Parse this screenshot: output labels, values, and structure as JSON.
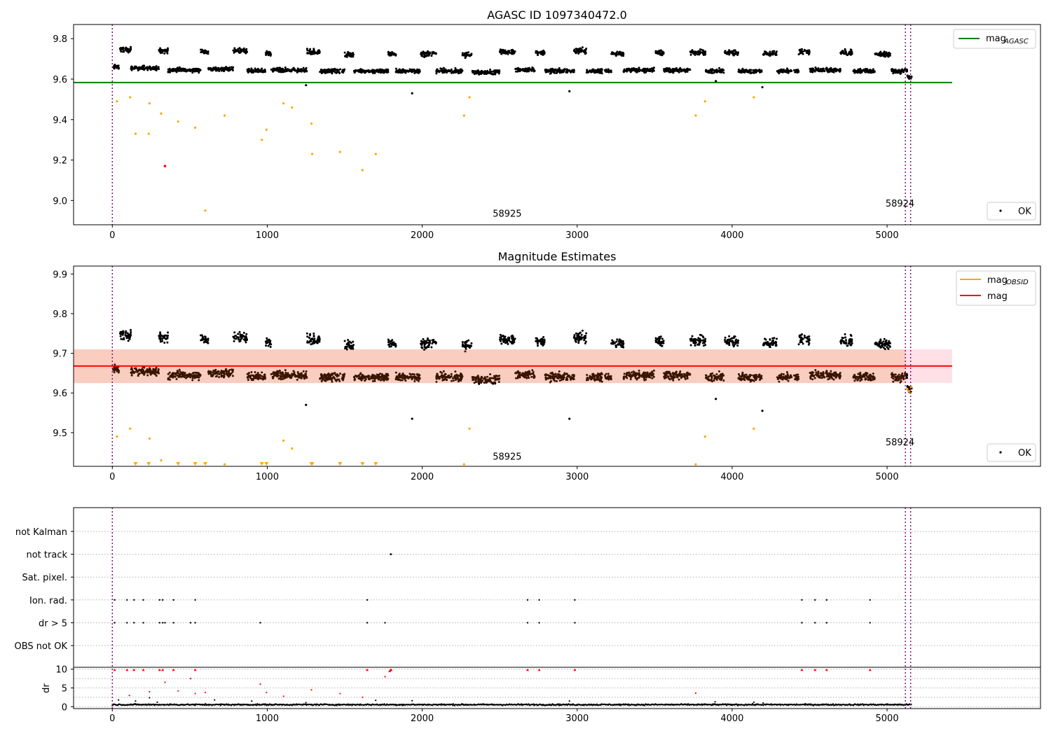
{
  "colors": {
    "ok": "#000000",
    "orange": "#ffa500",
    "red": "#ff0000",
    "green": "#008000",
    "purple": "#800080",
    "band": "#f9c8b8",
    "grid": "#b0b0b0"
  },
  "chart_data": [
    {
      "type": "scatter",
      "title": "AGASC ID 1097340472.0",
      "xlim": [
        -250,
        5990
      ],
      "ylim": [
        8.88,
        9.87
      ],
      "x_ticks": [
        "0",
        "1000",
        "2000",
        "3000",
        "4000",
        "5000"
      ],
      "y_ticks": [
        "9.0",
        "9.2",
        "9.4",
        "9.6",
        "9.8"
      ],
      "agasc_mag": 9.583,
      "agasc_line_x": [
        -250,
        5420
      ],
      "vlines": [
        0,
        5118,
        5152
      ],
      "annotations": [
        {
          "text": "58925",
          "x": 2455,
          "y": 8.92
        },
        {
          "text": "58924",
          "x": 4990,
          "y": 8.97
        }
      ],
      "legend_upper": [
        {
          "label": "mag",
          "sub": "AGASC",
          "color": "#008000"
        }
      ],
      "legend_lower": [
        {
          "label": "OK",
          "marker": "dot"
        }
      ],
      "outliers_orange": [
        [
          30,
          9.49
        ],
        [
          115,
          9.51
        ],
        [
          150,
          9.33
        ],
        [
          235,
          9.33
        ],
        [
          240,
          9.48
        ],
        [
          315,
          9.43
        ],
        [
          425,
          9.39
        ],
        [
          535,
          9.36
        ],
        [
          600,
          8.95
        ],
        [
          725,
          9.42
        ],
        [
          965,
          9.3
        ],
        [
          995,
          9.35
        ],
        [
          1105,
          9.48
        ],
        [
          1160,
          9.46
        ],
        [
          1285,
          9.38
        ],
        [
          1290,
          9.23
        ],
        [
          1470,
          9.24
        ],
        [
          1615,
          9.15
        ],
        [
          1700,
          9.23
        ],
        [
          2270,
          9.42
        ],
        [
          2305,
          9.51
        ],
        [
          3765,
          9.42
        ],
        [
          3825,
          9.49
        ],
        [
          4140,
          9.51
        ]
      ],
      "outliers_black": [
        [
          1250,
          9.57
        ],
        [
          1935,
          9.53
        ],
        [
          2950,
          9.54
        ],
        [
          3895,
          9.59
        ],
        [
          4195,
          9.56
        ]
      ],
      "outliers_red": [
        [
          340,
          9.17
        ]
      ]
    },
    {
      "type": "scatter",
      "title": "Magnitude Estimates",
      "xlim": [
        -250,
        5990
      ],
      "ylim": [
        9.415,
        9.92
      ],
      "x_ticks": [
        "0",
        "1000",
        "2000",
        "3000",
        "4000",
        "5000"
      ],
      "y_ticks": [
        "9.5",
        "9.6",
        "9.7",
        "9.8",
        "9.9"
      ],
      "mag": 9.668,
      "band": [
        9.625,
        9.71
      ],
      "band_x": [
        -250,
        5420
      ],
      "vlines": [
        0,
        5118,
        5152
      ],
      "annotations": [
        {
          "text": "58925",
          "x": 2455,
          "y": 9.432
        },
        {
          "text": "58924",
          "x": 4990,
          "y": 9.468
        }
      ],
      "legend_upper": [
        {
          "label": "mag",
          "sub": "OBSID",
          "color": "#ffa500"
        },
        {
          "label": "mag",
          "sub": "",
          "color": "#ff0000"
        }
      ],
      "legend_lower": [
        {
          "label": "OK",
          "marker": "dot"
        }
      ],
      "outliers_orange": [
        [
          30,
          9.49
        ],
        [
          115,
          9.51
        ],
        [
          240,
          9.485
        ],
        [
          315,
          9.43
        ],
        [
          725,
          9.42
        ],
        [
          1105,
          9.48
        ],
        [
          1160,
          9.46
        ],
        [
          2270,
          9.42
        ],
        [
          2305,
          9.51
        ],
        [
          3765,
          9.42
        ],
        [
          3825,
          9.49
        ],
        [
          4140,
          9.51
        ]
      ],
      "clipped_orange_x": [
        150,
        235,
        425,
        535,
        600,
        965,
        995,
        1285,
        1290,
        1470,
        1615,
        1700
      ],
      "outliers_black": [
        [
          1250,
          9.57
        ],
        [
          1935,
          9.535
        ],
        [
          2950,
          9.535
        ],
        [
          3895,
          9.585
        ],
        [
          4195,
          9.555
        ]
      ]
    },
    {
      "type": "scatter",
      "title": "",
      "xlim": [
        -250,
        5990
      ],
      "x_ticks": [
        "0",
        "1000",
        "2000",
        "3000",
        "4000",
        "5000"
      ],
      "flag_labels": [
        "not Kalman",
        "not track",
        "Sat. pixel.",
        "Ion. rad.",
        "dr > 5",
        "OBS not OK"
      ],
      "flag_points": {
        "not track": [
          1795,
          1800
        ],
        "Ion. rad.": [
          15,
          95,
          140,
          200,
          305,
          325,
          395,
          535,
          1645,
          2680,
          2755,
          2985,
          4450,
          4535,
          4610,
          4890
        ],
        "dr > 5": [
          15,
          95,
          140,
          200,
          305,
          325,
          340,
          395,
          505,
          535,
          955,
          1645,
          1760,
          2680,
          2755,
          2985,
          4450,
          4535,
          4610,
          4890
        ]
      },
      "dr_ylabel": "dr",
      "dr_ticks": [
        "0",
        "5",
        "10"
      ],
      "dr_ylim": [
        -0.5,
        10.5
      ],
      "dr_red": [
        [
          15,
          9.8
        ],
        [
          95,
          9.8
        ],
        [
          140,
          9.8
        ],
        [
          200,
          9.8
        ],
        [
          305,
          9.8
        ],
        [
          325,
          9.8
        ],
        [
          395,
          9.8
        ],
        [
          535,
          9.8
        ],
        [
          1645,
          9.8
        ],
        [
          1795,
          9.8
        ],
        [
          1800,
          9.8
        ],
        [
          2680,
          9.8
        ],
        [
          2755,
          9.8
        ],
        [
          2985,
          9.8
        ],
        [
          4450,
          9.8
        ],
        [
          4535,
          9.8
        ],
        [
          4610,
          9.8
        ],
        [
          4890,
          9.8
        ],
        [
          340,
          6.5
        ],
        [
          955,
          6.0
        ],
        [
          1760,
          8.0
        ],
        [
          505,
          7.5
        ],
        [
          110,
          3.0
        ],
        [
          240,
          4.0
        ],
        [
          425,
          4.2
        ],
        [
          535,
          3.5
        ],
        [
          600,
          3.8
        ],
        [
          995,
          3.8
        ],
        [
          1105,
          2.8
        ],
        [
          1285,
          4.5
        ],
        [
          1470,
          3.5
        ],
        [
          1615,
          2.5
        ],
        [
          3765,
          3.6
        ],
        [
          1790,
          9.5
        ]
      ],
      "dr_black": [
        [
          40,
          1.8
        ],
        [
          150,
          1.5
        ],
        [
          240,
          2.4
        ],
        [
          290,
          1.2
        ],
        [
          660,
          1.8
        ],
        [
          900,
          1.5
        ],
        [
          1250,
          1.1
        ],
        [
          1700,
          1.7
        ],
        [
          1935,
          1.6
        ],
        [
          2950,
          1.5
        ],
        [
          3890,
          1.3
        ],
        [
          4140,
          1.2
        ],
        [
          4200,
          1.0
        ]
      ]
    }
  ]
}
